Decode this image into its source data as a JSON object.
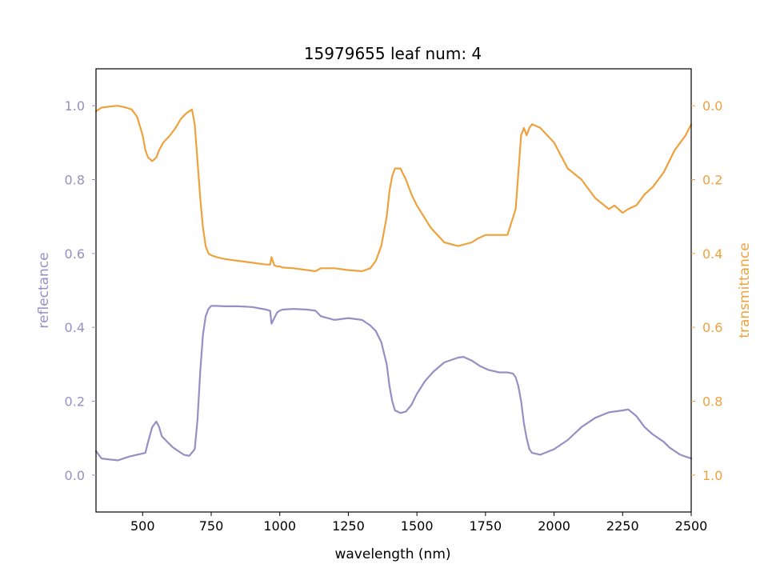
{
  "chart_data": {
    "type": "line",
    "title": "15979655 leaf num: 4",
    "xlabel": "wavelength (nm)",
    "xlim": [
      330,
      2500
    ],
    "xticks": [
      500,
      750,
      1000,
      1250,
      1500,
      1750,
      2000,
      2250,
      2500
    ],
    "grid": false,
    "axes": {
      "left": {
        "label": "reflectance",
        "color": "#9590c4",
        "ylim": [
          -0.1,
          1.1
        ],
        "ticks": [
          0.0,
          0.2,
          0.4,
          0.6,
          0.8,
          1.0
        ],
        "tick_labels": [
          "0.0",
          "0.2",
          "0.4",
          "0.6",
          "0.8",
          "1.0"
        ]
      },
      "right": {
        "label": "transmittance",
        "color": "#eea23e",
        "inverted": true,
        "ylim": [
          -0.1,
          1.1
        ],
        "ticks": [
          0.0,
          0.2,
          0.4,
          0.6,
          0.8,
          1.0
        ],
        "tick_labels": [
          "0.0",
          "0.2",
          "0.4",
          "0.6",
          "0.8",
          "1.0"
        ]
      }
    },
    "series": [
      {
        "axis": "left",
        "color": "#9590c4",
        "x": [
          330,
          350,
          380,
          410,
          450,
          480,
          510,
          520,
          535,
          550,
          560,
          570,
          590,
          610,
          630,
          650,
          670,
          690,
          700,
          710,
          720,
          730,
          740,
          750,
          770,
          800,
          850,
          900,
          950,
          965,
          970,
          980,
          990,
          1000,
          1010,
          1050,
          1100,
          1130,
          1150,
          1200,
          1250,
          1300,
          1330,
          1350,
          1370,
          1390,
          1400,
          1410,
          1420,
          1440,
          1460,
          1480,
          1500,
          1530,
          1560,
          1600,
          1650,
          1670,
          1700,
          1730,
          1760,
          1800,
          1830,
          1850,
          1860,
          1870,
          1880,
          1890,
          1900,
          1910,
          1920,
          1950,
          2000,
          2050,
          2100,
          2150,
          2200,
          2250,
          2270,
          2300,
          2330,
          2360,
          2400,
          2420,
          2440,
          2460,
          2480,
          2500
        ],
        "values": [
          0.065,
          0.045,
          0.042,
          0.04,
          0.05,
          0.055,
          0.06,
          0.09,
          0.13,
          0.145,
          0.13,
          0.105,
          0.09,
          0.075,
          0.065,
          0.055,
          0.052,
          0.07,
          0.15,
          0.28,
          0.38,
          0.43,
          0.45,
          0.458,
          0.458,
          0.457,
          0.457,
          0.455,
          0.448,
          0.445,
          0.41,
          0.425,
          0.44,
          0.445,
          0.448,
          0.45,
          0.448,
          0.445,
          0.43,
          0.42,
          0.425,
          0.42,
          0.405,
          0.39,
          0.36,
          0.3,
          0.24,
          0.2,
          0.175,
          0.168,
          0.172,
          0.19,
          0.22,
          0.255,
          0.28,
          0.305,
          0.318,
          0.32,
          0.31,
          0.295,
          0.285,
          0.278,
          0.278,
          0.275,
          0.265,
          0.24,
          0.2,
          0.14,
          0.1,
          0.07,
          0.06,
          0.055,
          0.07,
          0.095,
          0.13,
          0.155,
          0.17,
          0.175,
          0.178,
          0.16,
          0.13,
          0.11,
          0.09,
          0.075,
          0.065,
          0.055,
          0.05,
          0.045
        ]
      },
      {
        "axis": "right",
        "color": "#eea23e",
        "x": [
          330,
          350,
          380,
          410,
          440,
          460,
          480,
          500,
          510,
          520,
          535,
          550,
          560,
          575,
          600,
          620,
          640,
          660,
          680,
          690,
          700,
          710,
          720,
          730,
          740,
          750,
          770,
          800,
          850,
          900,
          950,
          965,
          970,
          980,
          990,
          1000,
          1010,
          1050,
          1100,
          1130,
          1150,
          1175,
          1200,
          1250,
          1300,
          1330,
          1350,
          1370,
          1390,
          1400,
          1410,
          1420,
          1440,
          1460,
          1480,
          1500,
          1550,
          1600,
          1650,
          1700,
          1720,
          1750,
          1800,
          1830,
          1860,
          1870,
          1880,
          1890,
          1900,
          1910,
          1920,
          1950,
          2000,
          2050,
          2100,
          2150,
          2200,
          2220,
          2250,
          2270,
          2300,
          2330,
          2360,
          2400,
          2420,
          2440,
          2460,
          2480,
          2500
        ],
        "values": [
          0.015,
          0.005,
          0.002,
          0.0,
          0.005,
          0.01,
          0.03,
          0.08,
          0.12,
          0.14,
          0.15,
          0.14,
          0.12,
          0.1,
          0.08,
          0.06,
          0.035,
          0.02,
          0.01,
          0.05,
          0.15,
          0.25,
          0.33,
          0.38,
          0.4,
          0.405,
          0.41,
          0.415,
          0.42,
          0.425,
          0.43,
          0.43,
          0.41,
          0.432,
          0.435,
          0.435,
          0.438,
          0.44,
          0.445,
          0.448,
          0.44,
          0.44,
          0.44,
          0.445,
          0.448,
          0.44,
          0.42,
          0.38,
          0.3,
          0.23,
          0.19,
          0.17,
          0.17,
          0.2,
          0.24,
          0.27,
          0.33,
          0.37,
          0.38,
          0.37,
          0.36,
          0.35,
          0.35,
          0.35,
          0.28,
          0.18,
          0.08,
          0.06,
          0.08,
          0.06,
          0.05,
          0.06,
          0.1,
          0.17,
          0.2,
          0.25,
          0.28,
          0.27,
          0.29,
          0.28,
          0.27,
          0.24,
          0.22,
          0.18,
          0.15,
          0.12,
          0.1,
          0.08,
          0.05
        ]
      }
    ]
  }
}
